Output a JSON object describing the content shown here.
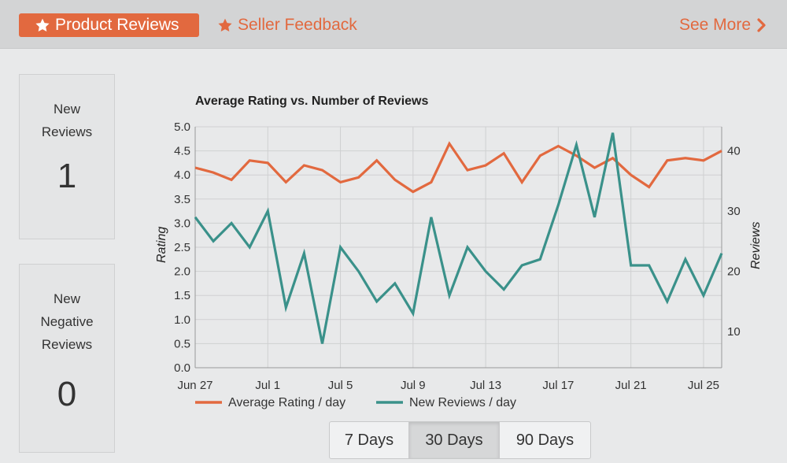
{
  "tabs": {
    "product_reviews": "Product Reviews",
    "seller_feedback": "Seller Feedback",
    "see_more": "See More"
  },
  "stats": {
    "new_reviews": {
      "label_line1": "New",
      "label_line2": "Reviews",
      "value": "1"
    },
    "new_negative_reviews": {
      "label_line1": "New",
      "label_line2": "Negative",
      "label_line3": "Reviews",
      "value": "0"
    }
  },
  "range_buttons": {
    "seven": "7 Days",
    "thirty": "30 Days",
    "ninety": "90 Days",
    "selected": "30 Days"
  },
  "colors": {
    "accent": "#e2693f",
    "rating_series": "#e2693f",
    "reviews_series": "#3a918a"
  },
  "chart_data": {
    "type": "line",
    "title": "Average Rating vs. Number of Reviews",
    "ylabel_left": "Rating",
    "ylabel_right": "Reviews",
    "ylim_left": [
      0,
      5
    ],
    "ylim_right": [
      4,
      44
    ],
    "yticks_left": [
      "0.0",
      "0.5",
      "1.0",
      "1.5",
      "2.0",
      "2.5",
      "3.0",
      "3.5",
      "4.0",
      "4.5",
      "5.0"
    ],
    "yticks_right": [
      "10",
      "20",
      "30",
      "40"
    ],
    "x_tick_labels": [
      "Jun 27",
      "Jul 1",
      "Jul 5",
      "Jul 9",
      "Jul 13",
      "Jul 17",
      "Jul 21",
      "Jul 25"
    ],
    "x_tick_index": [
      0,
      4,
      8,
      12,
      16,
      20,
      24,
      28
    ],
    "grid": true,
    "legend_position": "bottom",
    "series": [
      {
        "name": "Average Rating / day",
        "axis": "left",
        "values": [
          4.15,
          4.05,
          3.9,
          4.3,
          4.25,
          3.85,
          4.2,
          4.1,
          3.85,
          3.95,
          4.3,
          3.9,
          3.65,
          3.85,
          4.65,
          4.1,
          4.2,
          4.45,
          3.85,
          4.4,
          4.6,
          4.4,
          4.15,
          4.35,
          4.0,
          3.75,
          4.3,
          4.35,
          4.3,
          4.5
        ]
      },
      {
        "name": "New Reviews / day",
        "axis": "right",
        "values": [
          29,
          25,
          28,
          24,
          30,
          14,
          23,
          8,
          24,
          20,
          15,
          18,
          13,
          29,
          16,
          24,
          20,
          17,
          21,
          22,
          31,
          41,
          29,
          43,
          21,
          21,
          15,
          22,
          16,
          23
        ]
      }
    ]
  }
}
